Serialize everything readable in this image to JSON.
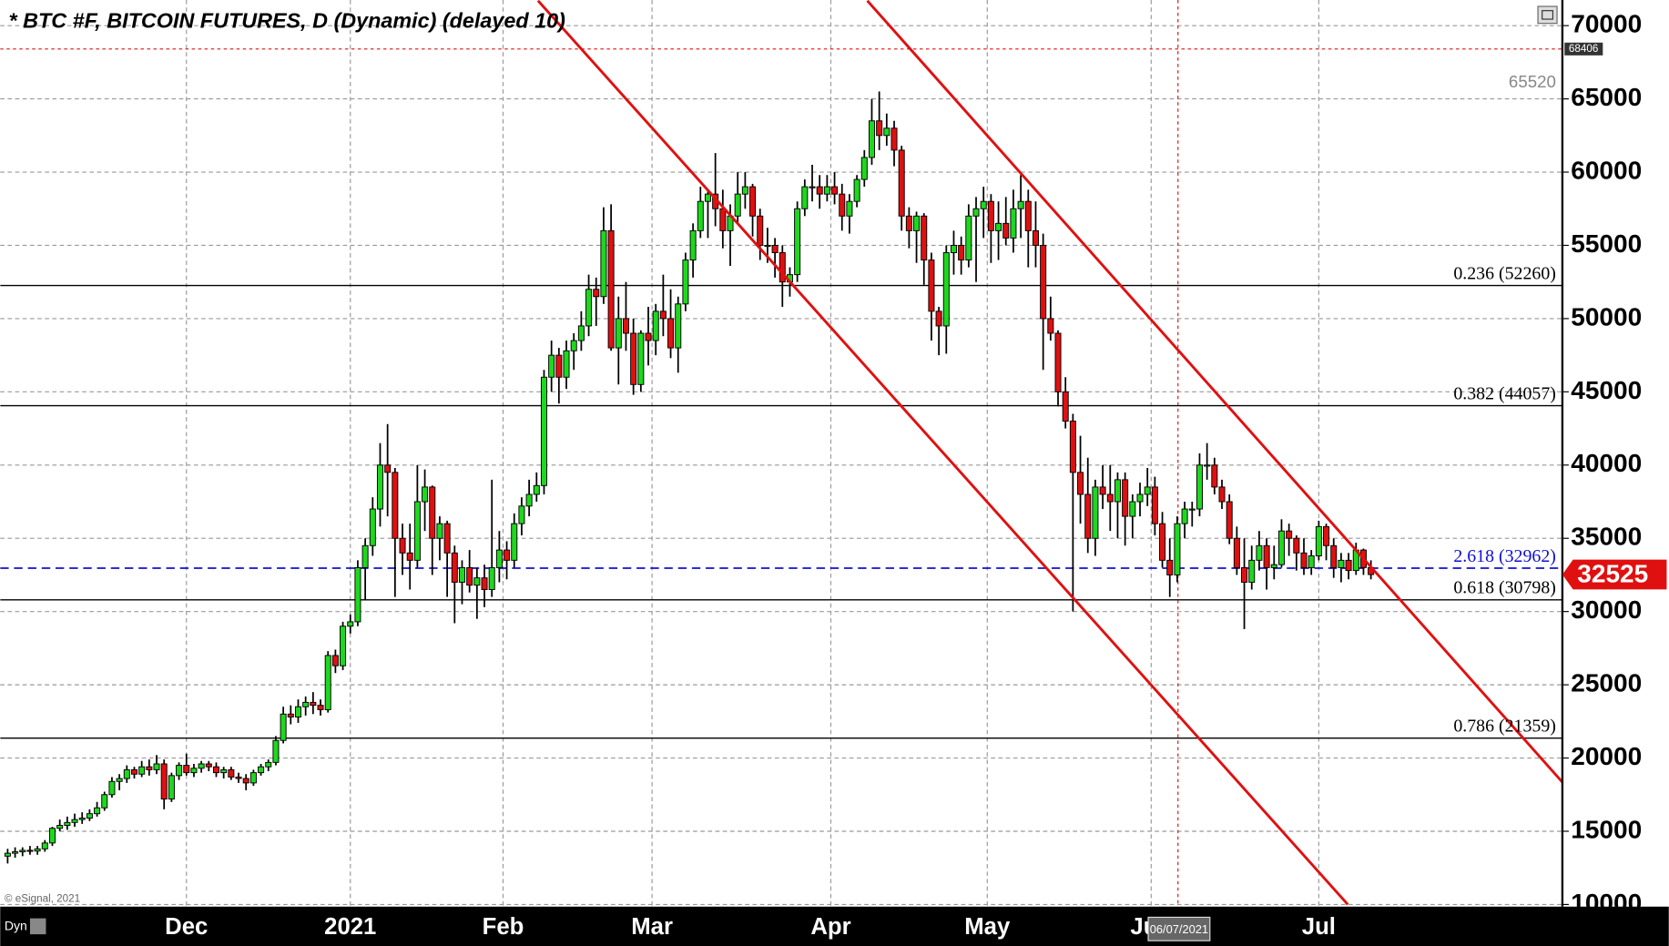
{
  "chart_data": {
    "type": "candlestick",
    "title": "* BTC #F, BITCOIN FUTURES, D (Dynamic) (delayed 10)",
    "copyright": "© eSignal, 2021",
    "mode_label": "Dyn",
    "up_color": "#1ed81e",
    "down_color": "#e01010",
    "grid": true,
    "ylim": [
      10000,
      71750
    ],
    "yticks": [
      10000,
      15000,
      20000,
      25000,
      30000,
      35000,
      40000,
      45000,
      50000,
      55000,
      60000,
      65000,
      70000
    ],
    "xlim": [
      -1,
      208.7
    ],
    "xticks": [
      {
        "value": 24,
        "label": "Dec"
      },
      {
        "value": 46,
        "label": "2021"
      },
      {
        "value": 66.5,
        "label": "Feb"
      },
      {
        "value": 86.5,
        "label": "Mar"
      },
      {
        "value": 110.5,
        "label": "Apr"
      },
      {
        "value": 131.5,
        "label": "May"
      },
      {
        "value": 153.5,
        "label": "Jun"
      },
      {
        "value": 176,
        "label": "Jul"
      }
    ],
    "levels": [
      {
        "label": "0.236 (52260)",
        "value": 52260,
        "color": "#000000",
        "dashed": false
      },
      {
        "label": "0.382 (44057)",
        "value": 44057,
        "color": "#000000",
        "dashed": false
      },
      {
        "label": "0.618 (30798)",
        "value": 30798,
        "color": "#000000",
        "dashed": false
      },
      {
        "label": "0.786 (21359)",
        "value": 21359,
        "color": "#000000",
        "dashed": false
      },
      {
        "label": "2.618 (32962)",
        "value": 32962,
        "color": "#1010d0",
        "dashed": true
      }
    ],
    "high_marker": 68406,
    "prev_high": 65520,
    "last_price": 32525,
    "cursor": {
      "x": 157.1,
      "label": "06/07/2021"
    },
    "trendlines": [
      {
        "color": "#e01010",
        "start": [
          71.2,
          71700
        ],
        "end": [
          179.9,
          10000
        ]
      },
      {
        "color": "#e01010",
        "start": [
          115.4,
          71700
        ],
        "end": [
          208.7,
          18350
        ]
      }
    ],
    "candles": [
      [
        13300,
        13800,
        12800,
        13500
      ],
      [
        13500,
        13900,
        13200,
        13600
      ],
      [
        13600,
        13900,
        13300,
        13700
      ],
      [
        13700,
        14000,
        13400,
        13650
      ],
      [
        13650,
        14000,
        13400,
        13800
      ],
      [
        13800,
        14400,
        13600,
        14200
      ],
      [
        14200,
        15300,
        14000,
        15200
      ],
      [
        15200,
        15800,
        15000,
        15400
      ],
      [
        15400,
        16000,
        15100,
        15600
      ],
      [
        15600,
        16200,
        15300,
        15800
      ],
      [
        15800,
        16300,
        15500,
        15900
      ],
      [
        15900,
        16500,
        15700,
        16200
      ],
      [
        16200,
        17000,
        16000,
        16600
      ],
      [
        16600,
        17700,
        16400,
        17500
      ],
      [
        17500,
        18700,
        17300,
        18400
      ],
      [
        18400,
        18900,
        17800,
        18600
      ],
      [
        18600,
        19500,
        18300,
        19200
      ],
      [
        19200,
        19400,
        18600,
        18900
      ],
      [
        18900,
        19800,
        18700,
        19400
      ],
      [
        19400,
        19900,
        18800,
        19200
      ],
      [
        19200,
        20200,
        18900,
        19600
      ],
      [
        19600,
        19900,
        16500,
        17200
      ],
      [
        17200,
        19000,
        17000,
        18800
      ],
      [
        18800,
        19700,
        18500,
        19500
      ],
      [
        19500,
        20300,
        18800,
        19000
      ],
      [
        19000,
        19600,
        18700,
        19300
      ],
      [
        19300,
        19800,
        19000,
        19600
      ],
      [
        19600,
        19800,
        19100,
        19400
      ],
      [
        19400,
        19700,
        18700,
        19000
      ],
      [
        19000,
        19400,
        18600,
        19200
      ],
      [
        19200,
        19400,
        18500,
        18700
      ],
      [
        18700,
        19000,
        18300,
        18600
      ],
      [
        18600,
        18900,
        17800,
        18300
      ],
      [
        18300,
        19200,
        18100,
        19000
      ],
      [
        19000,
        19600,
        18800,
        19400
      ],
      [
        19400,
        19900,
        19100,
        19700
      ],
      [
        19700,
        21500,
        19500,
        21200
      ],
      [
        21200,
        23500,
        21000,
        23000
      ],
      [
        23000,
        23600,
        22300,
        22800
      ],
      [
        22800,
        24000,
        22400,
        23500
      ],
      [
        23500,
        24200,
        22900,
        23800
      ],
      [
        23800,
        24500,
        23000,
        23600
      ],
      [
        23600,
        24000,
        22900,
        23300
      ],
      [
        23300,
        27300,
        23100,
        27000
      ],
      [
        27000,
        27400,
        25800,
        26300
      ],
      [
        26300,
        29300,
        26000,
        29000
      ],
      [
        29000,
        29800,
        28500,
        29300
      ],
      [
        29300,
        33500,
        29000,
        33000
      ],
      [
        33000,
        35000,
        30800,
        34500
      ],
      [
        34500,
        37800,
        33800,
        37000
      ],
      [
        37000,
        41500,
        35800,
        40000
      ],
      [
        40000,
        42800,
        36500,
        39500
      ],
      [
        39500,
        39800,
        31000,
        35000
      ],
      [
        35000,
        36000,
        32500,
        34000
      ],
      [
        34000,
        36000,
        31500,
        33500
      ],
      [
        33500,
        40000,
        33000,
        37500
      ],
      [
        37500,
        39700,
        35500,
        38500
      ],
      [
        38500,
        38600,
        32500,
        35000
      ],
      [
        35000,
        36500,
        33500,
        36000
      ],
      [
        36000,
        36200,
        31000,
        34000
      ],
      [
        34000,
        34500,
        29200,
        32000
      ],
      [
        32000,
        33500,
        30500,
        33000
      ],
      [
        33000,
        34200,
        31300,
        31800
      ],
      [
        31800,
        33000,
        29500,
        32300
      ],
      [
        32300,
        33200,
        30300,
        31500
      ],
      [
        31500,
        39000,
        31000,
        33000
      ],
      [
        33000,
        35500,
        32000,
        34200
      ],
      [
        34200,
        34800,
        32200,
        33500
      ],
      [
        33500,
        36700,
        33000,
        36000
      ],
      [
        36000,
        37800,
        35200,
        37200
      ],
      [
        37200,
        39000,
        36500,
        38000
      ],
      [
        38000,
        39500,
        37500,
        38600
      ],
      [
        38600,
        46500,
        38000,
        46000
      ],
      [
        46000,
        48500,
        45000,
        47500
      ],
      [
        47500,
        48000,
        44200,
        46000
      ],
      [
        46000,
        48500,
        45200,
        47800
      ],
      [
        47800,
        49000,
        46500,
        48500
      ],
      [
        48500,
        50500,
        47800,
        49500
      ],
      [
        49500,
        53000,
        48800,
        52000
      ],
      [
        52000,
        52800,
        49500,
        51500
      ],
      [
        51500,
        57600,
        51000,
        56000
      ],
      [
        56000,
        57800,
        47800,
        48000
      ],
      [
        48000,
        51500,
        45500,
        50000
      ],
      [
        50000,
        52500,
        47800,
        49000
      ],
      [
        49000,
        50000,
        44800,
        45500
      ],
      [
        45500,
        49200,
        45000,
        49000
      ],
      [
        49000,
        50800,
        46800,
        48500
      ],
      [
        48500,
        51000,
        47500,
        50500
      ],
      [
        50500,
        53000,
        48800,
        50000
      ],
      [
        50000,
        52000,
        47300,
        48000
      ],
      [
        48000,
        51500,
        46300,
        51000
      ],
      [
        51000,
        54500,
        50500,
        54000
      ],
      [
        54000,
        56500,
        52800,
        56000
      ],
      [
        56000,
        59000,
        55500,
        58000
      ],
      [
        58000,
        58800,
        55500,
        58500
      ],
      [
        58500,
        61300,
        56300,
        57500
      ],
      [
        57500,
        58800,
        54800,
        56000
      ],
      [
        56000,
        57800,
        53600,
        57000
      ],
      [
        57000,
        60000,
        56500,
        58500
      ],
      [
        58500,
        60000,
        57500,
        59000
      ],
      [
        59000,
        59200,
        55600,
        57000
      ],
      [
        57000,
        57500,
        54000,
        55000
      ],
      [
        55000,
        56200,
        53800,
        55000
      ],
      [
        55000,
        55500,
        52800,
        54500
      ],
      [
        54500,
        55000,
        50800,
        52500
      ],
      [
        52500,
        53500,
        51500,
        53000
      ],
      [
        53000,
        58000,
        52500,
        57500
      ],
      [
        57500,
        59500,
        57000,
        59000
      ],
      [
        59000,
        60500,
        58000,
        59000
      ],
      [
        59000,
        59800,
        57500,
        58500
      ],
      [
        58500,
        59800,
        58000,
        59000
      ],
      [
        59000,
        60000,
        57800,
        58500
      ],
      [
        58500,
        59200,
        56000,
        57000
      ],
      [
        57000,
        58500,
        55800,
        58000
      ],
      [
        58000,
        59800,
        57600,
        59500
      ],
      [
        59500,
        61500,
        59000,
        61000
      ],
      [
        61000,
        65000,
        60500,
        63500
      ],
      [
        63500,
        65500,
        61500,
        62500
      ],
      [
        62500,
        64000,
        61800,
        63000
      ],
      [
        63000,
        63500,
        60400,
        61500
      ],
      [
        61500,
        61800,
        56000,
        57000
      ],
      [
        57000,
        57600,
        54800,
        56000
      ],
      [
        56000,
        57300,
        53800,
        57000
      ],
      [
        57000,
        57200,
        52300,
        54000
      ],
      [
        54000,
        54500,
        48500,
        50500
      ],
      [
        50500,
        50800,
        47500,
        49500
      ],
      [
        49500,
        55000,
        47600,
        54500
      ],
      [
        54500,
        56000,
        53000,
        55000
      ],
      [
        55000,
        55600,
        53000,
        54000
      ],
      [
        54000,
        57800,
        53500,
        57000
      ],
      [
        57000,
        58300,
        52500,
        57500
      ],
      [
        57500,
        59000,
        55500,
        58000
      ],
      [
        58000,
        58500,
        53800,
        56000
      ],
      [
        56000,
        58000,
        54000,
        56500
      ],
      [
        56500,
        58300,
        55000,
        55500
      ],
      [
        55500,
        58800,
        54500,
        57500
      ],
      [
        57500,
        59800,
        55500,
        58000
      ],
      [
        58000,
        58800,
        53500,
        56000
      ],
      [
        56000,
        58000,
        53500,
        55000
      ],
      [
        55000,
        55800,
        46500,
        50000
      ],
      [
        50000,
        51500,
        48500,
        49000
      ],
      [
        49000,
        49200,
        44000,
        45000
      ],
      [
        45000,
        46000,
        42500,
        43000
      ],
      [
        43000,
        43500,
        30000,
        39500
      ],
      [
        39500,
        42000,
        36000,
        38000
      ],
      [
        38000,
        40500,
        34000,
        35000
      ],
      [
        35000,
        39000,
        33800,
        38500
      ],
      [
        38500,
        40000,
        37000,
        38000
      ],
      [
        38000,
        40000,
        35500,
        37500
      ],
      [
        37500,
        39500,
        35000,
        39000
      ],
      [
        39000,
        39500,
        34500,
        36500
      ],
      [
        36500,
        38000,
        35000,
        37500
      ],
      [
        37500,
        38800,
        36500,
        38000
      ],
      [
        38000,
        39800,
        37200,
        38500
      ],
      [
        38500,
        39200,
        35200,
        36000
      ],
      [
        36000,
        36800,
        33000,
        33500
      ],
      [
        33500,
        35000,
        31000,
        32500
      ],
      [
        32500,
        36500,
        32000,
        36000
      ],
      [
        36000,
        37500,
        35000,
        37000
      ],
      [
        37000,
        37500,
        35800,
        37000
      ],
      [
        37000,
        40800,
        36500,
        40000
      ],
      [
        40000,
        41500,
        39000,
        40000
      ],
      [
        40000,
        40500,
        38000,
        38500
      ],
      [
        38500,
        39000,
        37000,
        37500
      ],
      [
        37500,
        38000,
        34600,
        35000
      ],
      [
        35000,
        35800,
        32500,
        33000
      ],
      [
        33000,
        35000,
        28800,
        32000
      ],
      [
        32000,
        34500,
        31500,
        33500
      ],
      [
        33500,
        35500,
        32800,
        34500
      ],
      [
        34500,
        35000,
        31500,
        33000
      ],
      [
        33000,
        34500,
        32200,
        33200
      ],
      [
        33200,
        36300,
        33000,
        35500
      ],
      [
        35500,
        36000,
        33800,
        35000
      ],
      [
        35000,
        35200,
        32800,
        34000
      ],
      [
        34000,
        35000,
        32500,
        33000
      ],
      [
        33000,
        34200,
        32500,
        33800
      ],
      [
        33800,
        36200,
        33500,
        35800
      ],
      [
        35800,
        36000,
        33500,
        34500
      ],
      [
        34500,
        35000,
        32300,
        33000
      ],
      [
        33000,
        34000,
        32000,
        33500
      ],
      [
        33500,
        34000,
        32200,
        32800
      ],
      [
        32800,
        34700,
        32500,
        34200
      ],
      [
        34200,
        34300,
        32500,
        33000
      ],
      [
        33000,
        33500,
        32200,
        32525
      ]
    ]
  }
}
